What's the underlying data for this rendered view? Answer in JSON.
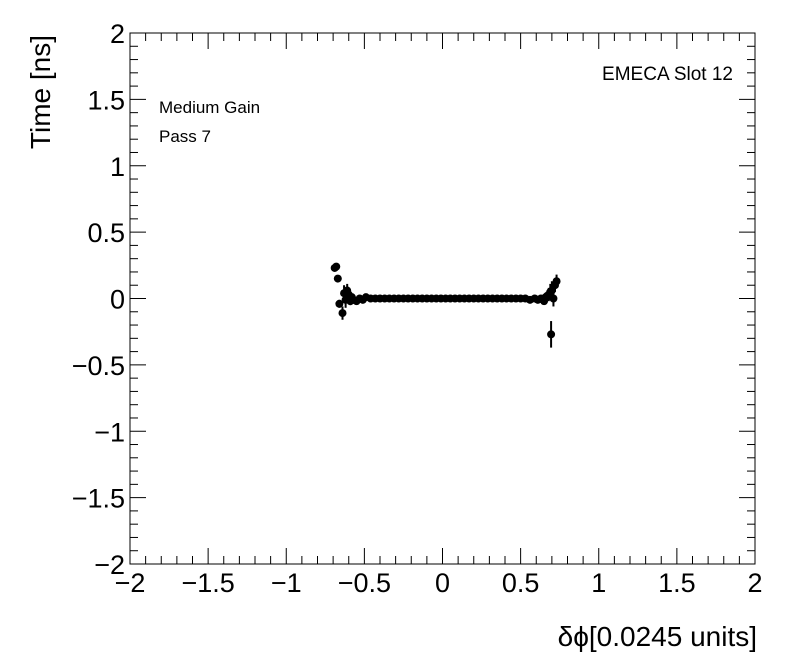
{
  "chart_data": {
    "type": "scatter",
    "xlabel": "δϕ[0.0245 units]",
    "ylabel": "Time [ns]",
    "xlim": [
      -2,
      2
    ],
    "ylim": [
      -2,
      2
    ],
    "x_tick_labels": [
      "−2",
      "−1.5",
      "−1",
      "−0.5",
      "0",
      "0.5",
      "1",
      "1.5",
      "2"
    ],
    "y_tick_labels": [
      "−2",
      "−1.5",
      "−1",
      "−0.5",
      "0",
      "0.5",
      "1",
      "1.5",
      "2"
    ],
    "annotations": [
      "EMECA Slot 12",
      "Medium Gain",
      "Pass 7"
    ],
    "grid": false,
    "marker_color": "#000000",
    "points": [
      {
        "x": -0.69,
        "y": 0.23,
        "err": 0.02
      },
      {
        "x": -0.68,
        "y": 0.24,
        "err": 0.02
      },
      {
        "x": -0.67,
        "y": 0.15,
        "err": 0.02
      },
      {
        "x": -0.66,
        "y": -0.04,
        "err": 0.03
      },
      {
        "x": -0.64,
        "y": -0.11,
        "err": 0.05
      },
      {
        "x": -0.63,
        "y": 0.04,
        "err": 0.06
      },
      {
        "x": -0.62,
        "y": -0.01,
        "err": 0.06
      },
      {
        "x": -0.61,
        "y": 0.06,
        "err": 0.05
      },
      {
        "x": -0.6,
        "y": 0.03,
        "err": 0.04
      },
      {
        "x": -0.59,
        "y": -0.02,
        "err": 0.03
      },
      {
        "x": -0.58,
        "y": 0.01,
        "err": 0.02
      },
      {
        "x": -0.57,
        "y": -0.01,
        "err": 0.02
      },
      {
        "x": -0.55,
        "y": -0.02,
        "err": 0.01
      },
      {
        "x": -0.53,
        "y": 0.0,
        "err": 0.01
      },
      {
        "x": -0.51,
        "y": -0.01,
        "err": 0.01
      },
      {
        "x": -0.49,
        "y": 0.01,
        "err": 0.01
      },
      {
        "x": -0.46,
        "y": 0.0,
        "err": 0.01
      },
      {
        "x": -0.43,
        "y": 0.0,
        "err": 0.01
      },
      {
        "x": -0.4,
        "y": 0.0,
        "err": 0.01
      },
      {
        "x": -0.37,
        "y": 0.0,
        "err": 0.01
      },
      {
        "x": -0.34,
        "y": 0.0,
        "err": 0.01
      },
      {
        "x": -0.31,
        "y": 0.0,
        "err": 0.01
      },
      {
        "x": -0.28,
        "y": 0.0,
        "err": 0.01
      },
      {
        "x": -0.25,
        "y": 0.0,
        "err": 0.01
      },
      {
        "x": -0.22,
        "y": 0.0,
        "err": 0.01
      },
      {
        "x": -0.19,
        "y": 0.0,
        "err": 0.01
      },
      {
        "x": -0.16,
        "y": 0.0,
        "err": 0.01
      },
      {
        "x": -0.13,
        "y": 0.0,
        "err": 0.01
      },
      {
        "x": -0.1,
        "y": 0.0,
        "err": 0.01
      },
      {
        "x": -0.07,
        "y": 0.0,
        "err": 0.01
      },
      {
        "x": -0.04,
        "y": 0.0,
        "err": 0.01
      },
      {
        "x": -0.01,
        "y": 0.0,
        "err": 0.01
      },
      {
        "x": 0.02,
        "y": 0.0,
        "err": 0.01
      },
      {
        "x": 0.05,
        "y": 0.0,
        "err": 0.01
      },
      {
        "x": 0.08,
        "y": 0.0,
        "err": 0.01
      },
      {
        "x": 0.11,
        "y": 0.0,
        "err": 0.01
      },
      {
        "x": 0.14,
        "y": 0.0,
        "err": 0.01
      },
      {
        "x": 0.17,
        "y": 0.0,
        "err": 0.01
      },
      {
        "x": 0.2,
        "y": 0.0,
        "err": 0.01
      },
      {
        "x": 0.23,
        "y": 0.0,
        "err": 0.01
      },
      {
        "x": 0.26,
        "y": 0.0,
        "err": 0.01
      },
      {
        "x": 0.29,
        "y": 0.0,
        "err": 0.01
      },
      {
        "x": 0.32,
        "y": 0.0,
        "err": 0.01
      },
      {
        "x": 0.35,
        "y": 0.0,
        "err": 0.01
      },
      {
        "x": 0.38,
        "y": 0.0,
        "err": 0.01
      },
      {
        "x": 0.41,
        "y": 0.0,
        "err": 0.01
      },
      {
        "x": 0.44,
        "y": 0.0,
        "err": 0.01
      },
      {
        "x": 0.47,
        "y": 0.0,
        "err": 0.01
      },
      {
        "x": 0.5,
        "y": 0.0,
        "err": 0.01
      },
      {
        "x": 0.53,
        "y": 0.0,
        "err": 0.01
      },
      {
        "x": 0.56,
        "y": -0.01,
        "err": 0.01
      },
      {
        "x": 0.59,
        "y": 0.0,
        "err": 0.01
      },
      {
        "x": 0.61,
        "y": -0.01,
        "err": 0.01
      },
      {
        "x": 0.63,
        "y": 0.0,
        "err": 0.02
      },
      {
        "x": 0.65,
        "y": -0.02,
        "err": 0.02
      },
      {
        "x": 0.66,
        "y": 0.01,
        "err": 0.03
      },
      {
        "x": 0.67,
        "y": 0.02,
        "err": 0.03
      },
      {
        "x": 0.68,
        "y": 0.03,
        "err": 0.05
      },
      {
        "x": 0.69,
        "y": 0.05,
        "err": 0.06
      },
      {
        "x": 0.695,
        "y": -0.27,
        "err": 0.1
      },
      {
        "x": 0.7,
        "y": 0.06,
        "err": 0.07
      },
      {
        "x": 0.71,
        "y": 0.0,
        "err": 0.06
      },
      {
        "x": 0.72,
        "y": 0.1,
        "err": 0.05
      },
      {
        "x": 0.73,
        "y": 0.13,
        "err": 0.05
      }
    ]
  }
}
